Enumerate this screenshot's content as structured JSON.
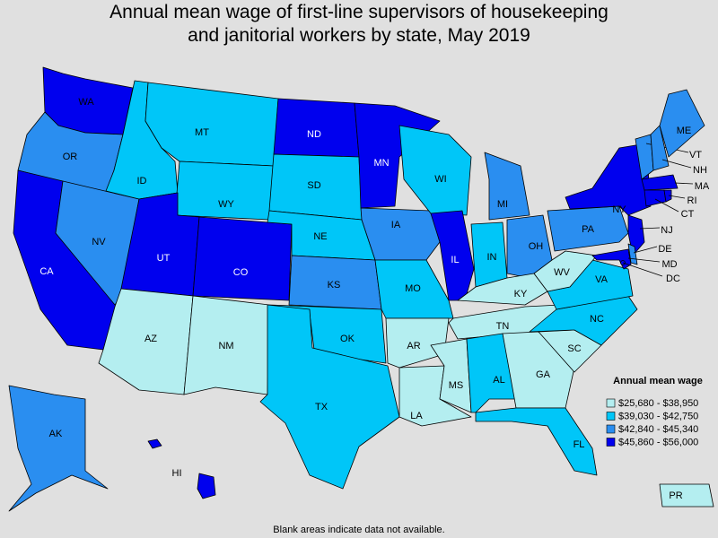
{
  "title": "Annual mean wage of first-line supervisors of housekeeping\nand janitorial workers by state, May 2019",
  "footnote": "Blank areas indicate data not available.",
  "legend": {
    "title": "Annual mean wage",
    "items": [
      {
        "label": "$25,680 - $38,950",
        "color": "#b4eef0"
      },
      {
        "label": "$39,030 - $42,750",
        "color": "#00c6f8"
      },
      {
        "label": "$42,840 - $45,340",
        "color": "#2a8ef0"
      },
      {
        "label": "$45,860 - $56,000",
        "color": "#0000ee"
      }
    ]
  },
  "states": [
    {
      "label": "WA",
      "color": "#0000ee"
    },
    {
      "label": "OR",
      "color": "#2a8ef0"
    },
    {
      "label": "CA",
      "color": "#0000ee"
    },
    {
      "label": "NV",
      "color": "#2a8ef0"
    },
    {
      "label": "ID",
      "color": "#00c6f8"
    },
    {
      "label": "MT",
      "color": "#00c6f8"
    },
    {
      "label": "WY",
      "color": "#00c6f8"
    },
    {
      "label": "UT",
      "color": "#0000ee"
    },
    {
      "label": "CO",
      "color": "#0000ee"
    },
    {
      "label": "AZ",
      "color": "#b4eef0"
    },
    {
      "label": "NM",
      "color": "#b4eef0"
    },
    {
      "label": "ND",
      "color": "#0000ee"
    },
    {
      "label": "SD",
      "color": "#00c6f8"
    },
    {
      "label": "NE",
      "color": "#00c6f8"
    },
    {
      "label": "KS",
      "color": "#2a8ef0"
    },
    {
      "label": "OK",
      "color": "#00c6f8"
    },
    {
      "label": "TX",
      "color": "#00c6f8"
    },
    {
      "label": "MN",
      "color": "#0000ee"
    },
    {
      "label": "IA",
      "color": "#2a8ef0"
    },
    {
      "label": "MO",
      "color": "#00c6f8"
    },
    {
      "label": "AR",
      "color": "#b4eef0"
    },
    {
      "label": "LA",
      "color": "#b4eef0"
    },
    {
      "label": "WI",
      "color": "#00c6f8"
    },
    {
      "label": "IL",
      "color": "#0000ee"
    },
    {
      "label": "MI",
      "color": "#2a8ef0"
    },
    {
      "label": "IN",
      "color": "#00c6f8"
    },
    {
      "label": "OH",
      "color": "#2a8ef0"
    },
    {
      "label": "KY",
      "color": "#b4eef0"
    },
    {
      "label": "TN",
      "color": "#b4eef0"
    },
    {
      "label": "MS",
      "color": "#b4eef0"
    },
    {
      "label": "AL",
      "color": "#00c6f8"
    },
    {
      "label": "GA",
      "color": "#b4eef0"
    },
    {
      "label": "FL",
      "color": "#00c6f8"
    },
    {
      "label": "SC",
      "color": "#b4eef0"
    },
    {
      "label": "NC",
      "color": "#00c6f8"
    },
    {
      "label": "VA",
      "color": "#00c6f8"
    },
    {
      "label": "WV",
      "color": "#b4eef0"
    },
    {
      "label": "PA",
      "color": "#2a8ef0"
    },
    {
      "label": "NY",
      "color": "#0000ee"
    },
    {
      "label": "VT",
      "color": "#2a8ef0"
    },
    {
      "label": "NH",
      "color": "#2a8ef0"
    },
    {
      "label": "ME",
      "color": "#2a8ef0"
    },
    {
      "label": "MA",
      "color": "#0000ee"
    },
    {
      "label": "CT",
      "color": "#0000ee"
    },
    {
      "label": "RI",
      "color": "#0000ee"
    },
    {
      "label": "NJ",
      "color": "#0000ee"
    },
    {
      "label": "DE",
      "color": "#2a8ef0"
    },
    {
      "label": "MD",
      "color": "#0000ee"
    },
    {
      "label": "DC",
      "color": "#0000ee"
    },
    {
      "label": "AK",
      "color": "#2a8ef0"
    },
    {
      "label": "HI",
      "color": "#0000ee"
    },
    {
      "label": "PR",
      "color": "#b4eef0"
    }
  ]
}
